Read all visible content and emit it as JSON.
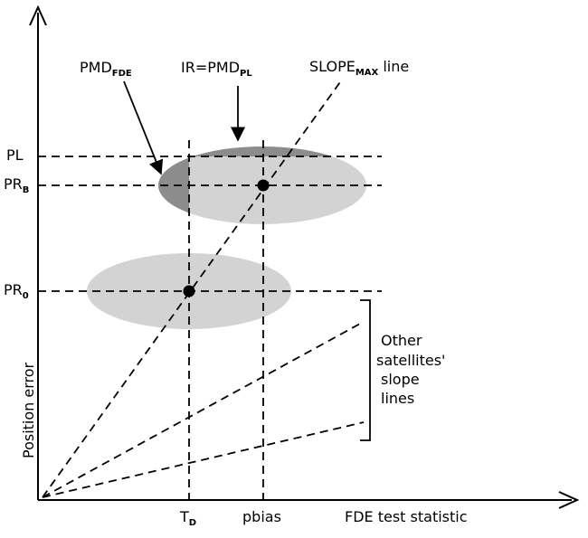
{
  "axes": {
    "x_label": "FDE test statistic",
    "y_label": "Position error"
  },
  "labels": {
    "pl": "PL",
    "pr_b_main": "PR",
    "pr_b_sub": "B",
    "pr_0_main": "PR",
    "pr_0_sub": "0",
    "t_d_main": "T",
    "t_d_sub": "D",
    "pbias": "pbias",
    "pmd_fde_main": "PMD",
    "pmd_fde_sub": "FDE",
    "ir_main": "IR=PMD",
    "ir_sub": "PL",
    "slope_main": "SLOPE",
    "slope_sub": "MAX",
    "slope_suffix": " line",
    "other_line1": "Other",
    "other_line2": "satellites'",
    "other_line3": "slope",
    "other_line4": "lines"
  },
  "colors": {
    "ellipse_light": "#d3d3d3",
    "ellipse_dark": "#8c8c8c",
    "ink": "#000000"
  }
}
